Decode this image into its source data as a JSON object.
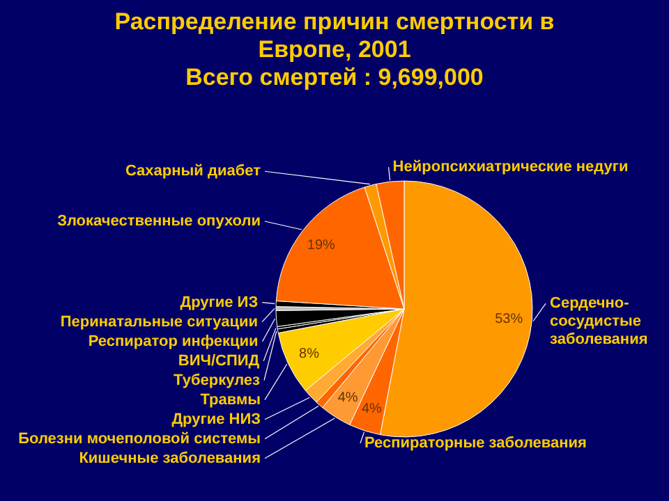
{
  "chart_data": {
    "type": "pie",
    "title": "Распределение причин смертности в Европе, 2001",
    "subtitle": "Всего смертей : 9,699,000",
    "categories": [
      "Сердечно-сосудистые заболевания",
      "Респираторные заболевания",
      "Кишечные заболевания",
      "Болезни мочеполовой системы",
      "Другие НИЗ",
      "Травмы",
      "Туберкулез",
      "ВИЧ/СПИД",
      "Респиратор инфекции",
      "Перинатальные ситуации",
      "Другие ИЗ",
      "Злокачественные опухоли",
      "Сахарный диабет",
      "Нейропсихиатрические недуги"
    ],
    "values": [
      53,
      4,
      4,
      1,
      2,
      8,
      0.5,
      0.3,
      2,
      0.5,
      0.7,
      19,
      1.5,
      3.5
    ],
    "colors": [
      "#ff9900",
      "#ff6600",
      "#ff9933",
      "#ff6600",
      "#ffaa33",
      "#ffcc00",
      "#000000",
      "#000000",
      "#000000",
      "#c0c0c0",
      "#000000",
      "#ff6600",
      "#ff9900",
      "#ff6600"
    ],
    "value_labels": [
      "53%",
      "4%",
      "4%",
      null,
      null,
      "8%",
      null,
      null,
      null,
      null,
      null,
      "19%",
      null,
      null
    ]
  }
}
